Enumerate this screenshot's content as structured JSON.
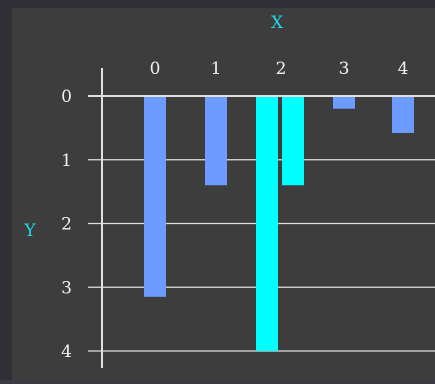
{
  "colors": {
    "frame_outer": "#2f2f35",
    "plot_bg": "#3d3d3d",
    "axis": "#e0e0e0",
    "grid": "#e0e0e0",
    "tick_text": "#f0f0f0",
    "axis_label": "#20d8e8",
    "series_a": "#6e9bff",
    "series_b": "#00ffff"
  },
  "chart_data": {
    "type": "bar",
    "orientation": "vertical-down",
    "x_axis_position": "top",
    "xlabel": "X",
    "ylabel": "Y",
    "categories": [
      "0",
      "1",
      "2",
      "3",
      "4"
    ],
    "y_ticks": [
      "0",
      "1",
      "2",
      "3",
      "4"
    ],
    "ylim": [
      0,
      4
    ],
    "y_inverted": true,
    "grid": true,
    "series": [
      {
        "values": [
          3.15,
          1.4,
          4.0,
          0.2,
          0.58
        ]
      },
      {
        "values": [
          null,
          null,
          1.4,
          null,
          null
        ]
      }
    ],
    "notes": "bar at x=2 is split: a cyan bar to 4.0 and a cyan bar to 1.4"
  }
}
